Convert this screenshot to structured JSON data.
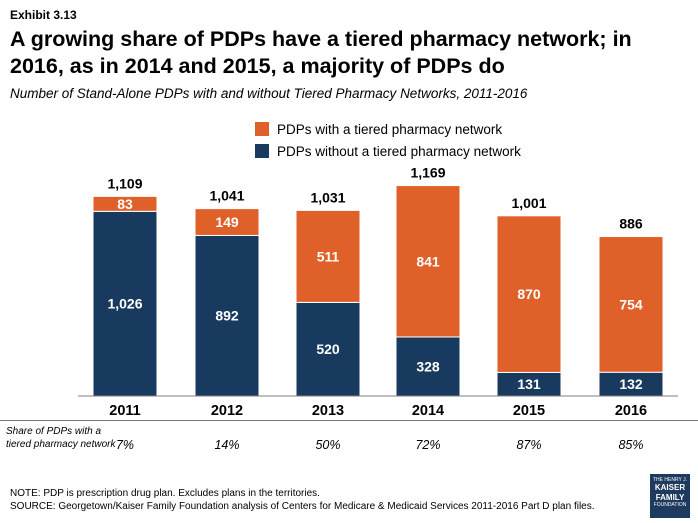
{
  "exhibit": "Exhibit 3.13",
  "title": "A growing share of PDPs have a tiered pharmacy network; in 2016, as in 2014 and 2015, a majority of PDPs do",
  "subtitle": "Number of Stand-Alone PDPs with and without Tiered Pharmacy Networks, 2011-2016",
  "colors": {
    "tiered": "#E0602A",
    "non_tiered": "#183A5E"
  },
  "share_row": {
    "label": "Share of PDPs with a tiered pharmacy network",
    "values": [
      "7%",
      "14%",
      "50%",
      "72%",
      "87%",
      "85%"
    ]
  },
  "footer": {
    "note": "NOTE: PDP is prescription drug plan. Excludes plans in the territories.",
    "source": "SOURCE: Georgetown/Kaiser Family Foundation analysis of Centers for Medicare & Medicaid Services 2011-2016 Part D plan files."
  },
  "logo": {
    "line1": "THE HENRY J.",
    "line2": "KAISER",
    "line3": "FAMILY",
    "line4": "FOUNDATION"
  },
  "chart_data": {
    "type": "bar",
    "stacked": true,
    "categories": [
      "2011",
      "2012",
      "2013",
      "2014",
      "2015",
      "2016"
    ],
    "series": [
      {
        "name": "PDPs without a tiered pharmacy network",
        "values": [
          1026,
          892,
          520,
          328,
          131,
          132
        ]
      },
      {
        "name": "PDPs with a tiered pharmacy network",
        "values": [
          83,
          149,
          511,
          841,
          870,
          754
        ]
      }
    ],
    "totals": [
      1109,
      1041,
      1031,
      1169,
      1001,
      886
    ],
    "legend_order": [
      "PDPs with a tiered pharmacy network",
      "PDPs without a tiered pharmacy network"
    ],
    "legend_position": "top-center",
    "ylim": [
      0,
      1200
    ],
    "grid": false
  }
}
